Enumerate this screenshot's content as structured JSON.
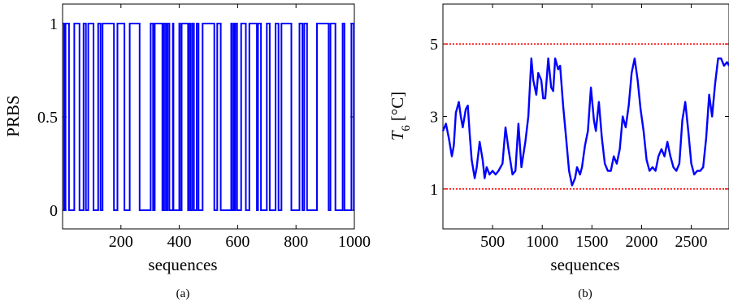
{
  "chart_data": [
    {
      "id": "a",
      "type": "line",
      "step": true,
      "caption": "(a)",
      "title": "",
      "xlabel": "sequences",
      "ylabel": "PRBS",
      "xlim": [
        0,
        1000
      ],
      "ylim": [
        0,
        1
      ],
      "xticks": [
        200,
        400,
        600,
        800,
        1000
      ],
      "yticks": [
        0,
        0.5,
        1
      ],
      "xtick_labels": [
        "200",
        "400",
        "600",
        "800",
        "1000"
      ],
      "ytick_labels": [
        "0",
        "0.5",
        "1"
      ],
      "colors": {
        "series": "#0000ff"
      },
      "series": [
        {
          "x": [
            0,
            5,
            10,
            22,
            40,
            58,
            72,
            80,
            88,
            106,
            122,
            130,
            137,
            176,
            188,
            212,
            230,
            264,
            302,
            310,
            316,
            342,
            348,
            354,
            360,
            366,
            378,
            380,
            400,
            402,
            408,
            430,
            432,
            438,
            444,
            450,
            460,
            466,
            480,
            520,
            530,
            542,
            578,
            580,
            586,
            590,
            592,
            598,
            612,
            628,
            640,
            666,
            670,
            680,
            700,
            710,
            730,
            740,
            750,
            784,
            812,
            822,
            828,
            838,
            872,
            912,
            918,
            935,
            960,
            966,
            990,
            998,
            1000
          ],
          "y": [
            1,
            0,
            1,
            0,
            1,
            0,
            1,
            0,
            1,
            0,
            1,
            0,
            1,
            0,
            1,
            0,
            1,
            0,
            1,
            0,
            1,
            0,
            1,
            0,
            1,
            0,
            1,
            0,
            1,
            0,
            1,
            0,
            1,
            0,
            1,
            0,
            1,
            0,
            1,
            0,
            1,
            0,
            1,
            0,
            1,
            0,
            1,
            0,
            1,
            0,
            1,
            0,
            1,
            0,
            1,
            0,
            1,
            0,
            1,
            0,
            1,
            0,
            1,
            0,
            1,
            0,
            1,
            0,
            1,
            0,
            1,
            0,
            0
          ]
        }
      ]
    },
    {
      "id": "b",
      "type": "line",
      "caption": "(b)",
      "title": "",
      "xlabel": "sequences",
      "ylabel": "T6 [°C]",
      "ylabel_parts": {
        "symbol": "T",
        "subscript": "6",
        "unit": "[°C]"
      },
      "xlim": [
        0,
        2880
      ],
      "ylim": [
        -0.1,
        6.1
      ],
      "xticks": [
        500,
        1000,
        1500,
        2000,
        2500
      ],
      "yticks": [
        1,
        3,
        5
      ],
      "xtick_labels": [
        "500",
        "1000",
        "1500",
        "2000",
        "2500"
      ],
      "ytick_labels": [
        "1",
        "3",
        "5"
      ],
      "reference_lines": [
        {
          "y": 5,
          "style": "dotted",
          "color": "#ff0000"
        },
        {
          "y": 1,
          "style": "dotted",
          "color": "#ff0000"
        }
      ],
      "colors": {
        "series": "#0000ff",
        "reference": "#ff0000"
      },
      "series": [
        {
          "x": [
            0,
            30,
            60,
            90,
            110,
            130,
            160,
            180,
            200,
            230,
            250,
            270,
            290,
            320,
            340,
            370,
            400,
            420,
            440,
            470,
            500,
            530,
            560,
            600,
            630,
            660,
            700,
            730,
            760,
            790,
            830,
            860,
            890,
            910,
            940,
            960,
            990,
            1010,
            1030,
            1060,
            1090,
            1110,
            1130,
            1160,
            1180,
            1210,
            1240,
            1270,
            1300,
            1330,
            1350,
            1380,
            1400,
            1430,
            1460,
            1490,
            1520,
            1540,
            1570,
            1600,
            1630,
            1660,
            1690,
            1720,
            1750,
            1780,
            1810,
            1840,
            1870,
            1900,
            1930,
            1960,
            1990,
            2020,
            2050,
            2080,
            2110,
            2140,
            2170,
            2200,
            2230,
            2260,
            2290,
            2320,
            2350,
            2380,
            2410,
            2440,
            2470,
            2500,
            2530,
            2560,
            2590,
            2620,
            2650,
            2680,
            2710,
            2740,
            2770,
            2800,
            2830,
            2860,
            2880
          ],
          "y": [
            2.6,
            2.8,
            2.4,
            1.9,
            2.2,
            3.1,
            3.4,
            3.0,
            2.7,
            3.2,
            3.3,
            2.5,
            1.8,
            1.3,
            1.6,
            2.3,
            1.8,
            1.3,
            1.6,
            1.4,
            1.5,
            1.4,
            1.5,
            1.7,
            2.7,
            2.1,
            1.4,
            1.5,
            2.8,
            1.6,
            2.3,
            3.0,
            4.6,
            4.0,
            3.6,
            4.2,
            4.0,
            3.5,
            3.5,
            4.6,
            3.8,
            3.7,
            4.6,
            4.3,
            4.4,
            3.3,
            2.4,
            1.5,
            1.1,
            1.3,
            1.6,
            1.4,
            1.6,
            2.2,
            2.6,
            3.8,
            2.9,
            2.6,
            3.4,
            2.4,
            1.7,
            1.5,
            1.5,
            1.9,
            1.7,
            2.1,
            3.0,
            2.7,
            3.3,
            4.2,
            4.6,
            4.0,
            3.2,
            2.6,
            1.8,
            1.5,
            1.6,
            1.5,
            1.9,
            2.1,
            1.9,
            2.3,
            1.9,
            1.6,
            1.5,
            1.7,
            2.9,
            3.4,
            2.6,
            1.7,
            1.4,
            1.5,
            1.5,
            1.6,
            2.4,
            3.6,
            3.0,
            3.9,
            4.6,
            4.6,
            4.4,
            4.5,
            4.4
          ]
        }
      ]
    }
  ]
}
